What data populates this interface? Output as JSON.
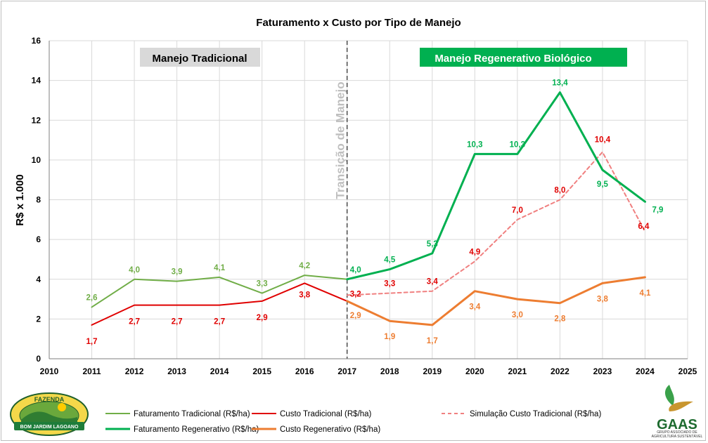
{
  "chart_data": {
    "type": "line",
    "title": "Faturamento x Custo por Tipo de Manejo",
    "ylabel": "R$ x 1.000",
    "xlim": [
      2010,
      2025
    ],
    "ylim": [
      0,
      16
    ],
    "x_ticks": [
      "2010",
      "2011",
      "2012",
      "2013",
      "2014",
      "2015",
      "2016",
      "2017",
      "2018",
      "2019",
      "2020",
      "2021",
      "2022",
      "2023",
      "2024",
      "2025"
    ],
    "y_ticks": [
      "0",
      "2",
      "4",
      "6",
      "8",
      "10",
      "12",
      "14",
      "16"
    ],
    "grid": true,
    "legend_position": "bottom",
    "annotations": {
      "left_banner": "Manejo Tradicional",
      "right_banner": "Manejo Regenerativo Biológico",
      "divider_label": "Transição de Manejo",
      "divider_x": 2017
    },
    "series": [
      {
        "key": "fat_trad",
        "name": "Faturamento Tradicional (R$/ha)",
        "color": "#70ad47",
        "dashed": false,
        "width": 2,
        "x": [
          2011,
          2012,
          2013,
          2014,
          2015,
          2016,
          2017
        ],
        "values": [
          2.6,
          4.0,
          3.9,
          4.1,
          3.3,
          4.2,
          4.0
        ],
        "labels": [
          "2,6",
          "4,0",
          "3,9",
          "4,1",
          "3,3",
          "4,2",
          ""
        ]
      },
      {
        "key": "custo_trad",
        "name": "Custo Tradicional (R$/ha)",
        "color": "#e00000",
        "dashed": false,
        "width": 2,
        "x": [
          2011,
          2012,
          2013,
          2014,
          2015,
          2016,
          2017
        ],
        "values": [
          1.7,
          2.7,
          2.7,
          2.7,
          2.9,
          3.8,
          2.9
        ],
        "labels": [
          "1,7",
          "2,7",
          "2,7",
          "2,7",
          "2,9",
          "3,8",
          ""
        ]
      },
      {
        "key": "sim_custo",
        "name": "Simulação Custo Tradicional (R$/ha)",
        "color": "#f08080",
        "dashed": true,
        "width": 2,
        "x": [
          2017,
          2018,
          2019,
          2020,
          2021,
          2022,
          2023,
          2024
        ],
        "values": [
          3.2,
          3.3,
          3.4,
          4.9,
          7.0,
          8.0,
          10.4,
          6.4
        ],
        "labels": [
          "3,2",
          "3,3",
          "3,4",
          "4,9",
          "7,0",
          "8,0",
          "10,4",
          "6,4"
        ]
      },
      {
        "key": "fat_reg",
        "name": "Faturamento Regenerativo (R$/ha)",
        "color": "#00b050",
        "dashed": false,
        "width": 3,
        "x": [
          2017,
          2018,
          2019,
          2020,
          2021,
          2022,
          2023,
          2024
        ],
        "values": [
          4.0,
          4.5,
          5.3,
          10.3,
          10.3,
          13.4,
          9.5,
          7.9
        ],
        "labels": [
          "4,0",
          "4,5",
          "5,3",
          "10,3",
          "10,3",
          "13,4",
          "9,5",
          "7,9"
        ]
      },
      {
        "key": "custo_reg",
        "name": "Custo Regenerativo (R$/ha)",
        "color": "#ed7d31",
        "dashed": false,
        "width": 3,
        "x": [
          2017,
          2018,
          2019,
          2020,
          2021,
          2022,
          2023,
          2024
        ],
        "values": [
          2.9,
          1.9,
          1.7,
          3.4,
          3.0,
          2.8,
          3.8,
          4.1
        ],
        "labels": [
          "2,9",
          "1,9",
          "1,7",
          "3,4",
          "3,0",
          "2,8",
          "3,8",
          "4,1"
        ]
      }
    ]
  },
  "logos": {
    "left": {
      "top_text": "FAZENDA",
      "bottom_text": "BOM JARDIM LAGOANO"
    },
    "right": {
      "name": "GAAS",
      "subtitle_1": "GRUPO ASSOCIADO DE",
      "subtitle_2": "AGRICULTURA SUSTENTÁVEL"
    }
  }
}
